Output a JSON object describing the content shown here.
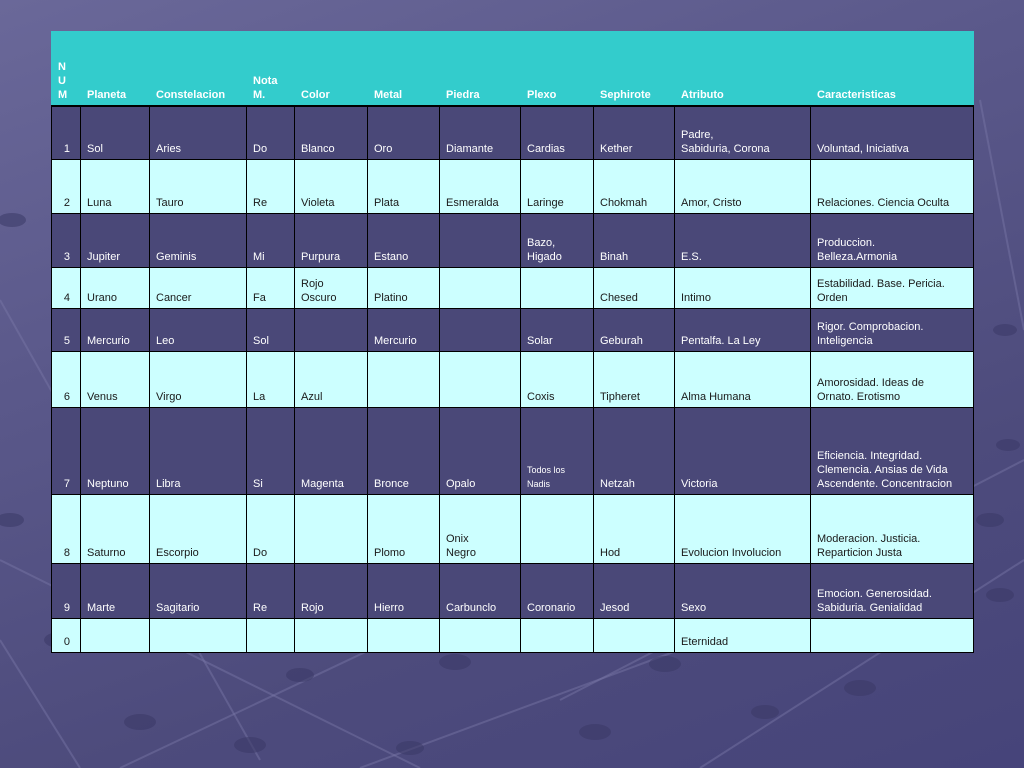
{
  "table": {
    "headers": [
      "N\nU\nM",
      "Planeta",
      "Constelacion",
      "Nota\nM.",
      "Color",
      "Metal",
      "Piedra",
      "Plexo",
      "Sephirote",
      "Atributo",
      "Caracteristicas"
    ],
    "rows": [
      [
        "1",
        "Sol",
        "Aries",
        "Do",
        "Blanco",
        "Oro",
        "Diamante",
        "Cardias",
        "Kether",
        "Padre,\nSabiduria, Corona",
        "Voluntad, Iniciativa"
      ],
      [
        "2",
        "Luna",
        "Tauro",
        "Re",
        "Violeta",
        "Plata",
        "Esmeralda",
        "Laringe",
        "Chokmah",
        "Amor, Cristo",
        "Relaciones. Ciencia Oculta"
      ],
      [
        "3",
        "Jupiter",
        "Geminis",
        "Mi",
        "Purpura",
        "Estano",
        "",
        "Bazo,\nHigado",
        "Binah",
        "E.S.",
        "Produccion.\nBelleza.Armonia"
      ],
      [
        "4",
        "Urano",
        "Cancer",
        "Fa",
        "Rojo\nOscuro",
        "Platino",
        "",
        "",
        "Chesed",
        "Intimo",
        "Estabilidad. Base. Pericia.\nOrden"
      ],
      [
        "5",
        "Mercurio",
        "Leo",
        "Sol",
        "",
        "Mercurio",
        "",
        "Solar",
        "Geburah",
        "Pentalfa. La Ley",
        "Rigor. Comprobacion.\nInteligencia"
      ],
      [
        "6",
        "Venus",
        "Virgo",
        "La",
        "Azul",
        "",
        "",
        "Coxis",
        "Tipheret",
        "Alma Humana",
        "Amorosidad. Ideas de\nOrnato. Erotismo"
      ],
      [
        "7",
        "Neptuno",
        "Libra",
        "Si",
        "Magenta",
        "Bronce",
        "Opalo",
        "Todos los\nNadis",
        "Netzah",
        "Victoria",
        "Eficiencia. Integridad.\nClemencia. Ansias de Vida\nAscendente. Concentracion"
      ],
      [
        "8",
        "Saturno",
        "Escorpio",
        "Do",
        "",
        "Plomo",
        "Onix\n Negro",
        "",
        "Hod",
        "Evolucion Involucion",
        "Moderacion. Justicia.\nReparticion Justa"
      ],
      [
        "9",
        "Marte",
        "Sagitario",
        "Re",
        "Rojo",
        "Hierro",
        "Carbunclo",
        "Coronario",
        "Jesod",
        "Sexo",
        "Emocion. Generosidad.\nSabiduria. Genialidad"
      ],
      [
        "0",
        "",
        "",
        "",
        "",
        "",
        "",
        "",
        "",
        "Eternidad",
        ""
      ]
    ]
  }
}
